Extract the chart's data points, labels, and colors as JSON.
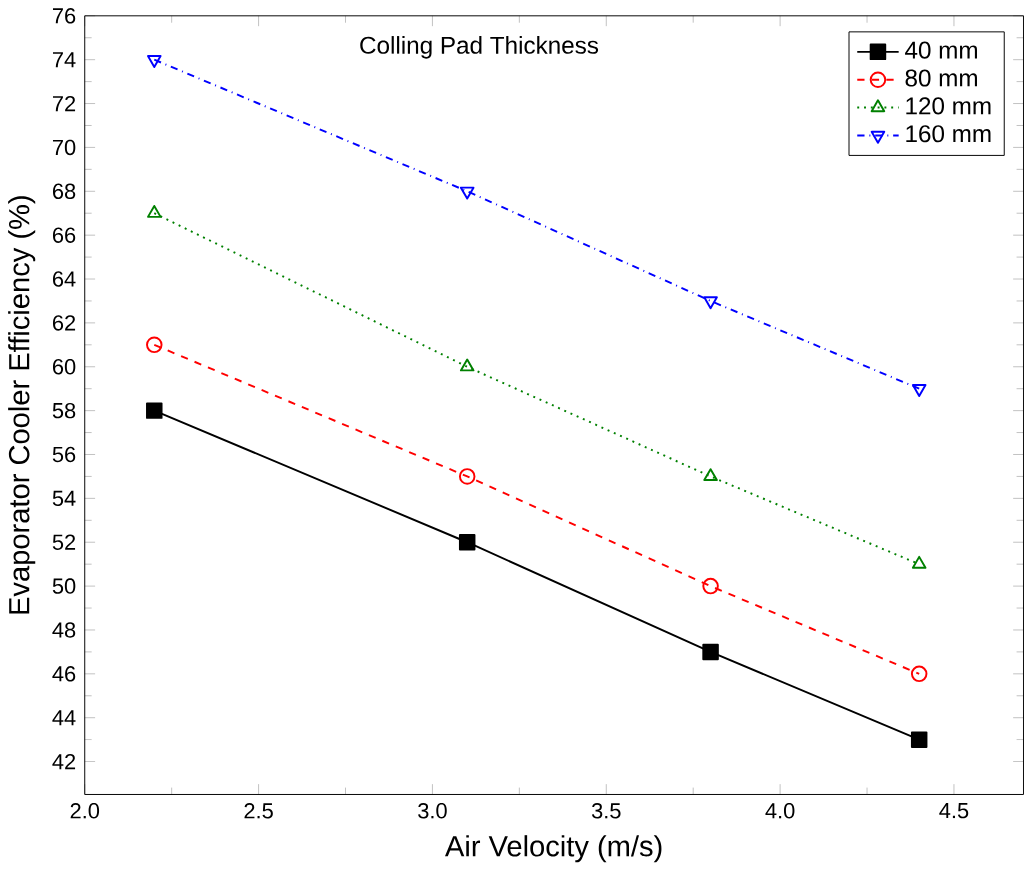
{
  "chart_data": {
    "type": "line",
    "xlabel": "Air Velocity (m/s)",
    "ylabel": "Evaporator Cooler Efficiency (%)",
    "annotations": [
      "Colling Pad Thickness"
    ],
    "x": [
      2.2,
      3.1,
      3.8,
      4.4
    ],
    "series": [
      {
        "name": "40 mm",
        "color": "#000000",
        "values": [
          58,
          52,
          47,
          43
        ],
        "marker": "square",
        "line_style": "solid"
      },
      {
        "name": "80 mm",
        "color": "#ff0000",
        "values": [
          61,
          55,
          50,
          46
        ],
        "marker": "circle",
        "line_style": "dashed"
      },
      {
        "name": "120 mm",
        "color": "#008000",
        "values": [
          67,
          60,
          55,
          51
        ],
        "marker": "triangle",
        "line_style": "dotted"
      },
      {
        "name": "160 mm",
        "color": "#0000ff",
        "values": [
          74,
          68,
          63,
          59
        ],
        "marker": "triangle_down",
        "line_style": "dashdot"
      }
    ],
    "xlim": [
      2.0,
      4.7
    ],
    "ylim": [
      40.5,
      76
    ],
    "xticks": [
      {
        "value": 2.0,
        "label": "2.0"
      },
      {
        "value": 2.5,
        "label": "2.5"
      },
      {
        "value": 3.0,
        "label": "3.0"
      },
      {
        "value": 3.5,
        "label": "3.5"
      },
      {
        "value": 4.0,
        "label": "4.0"
      },
      {
        "value": 4.5,
        "label": "4.5"
      }
    ],
    "yticks": [
      42,
      44,
      46,
      48,
      50,
      52,
      54,
      56,
      58,
      60,
      62,
      64,
      66,
      68,
      70,
      72,
      74,
      76
    ],
    "grid": false,
    "legend": "top right"
  }
}
